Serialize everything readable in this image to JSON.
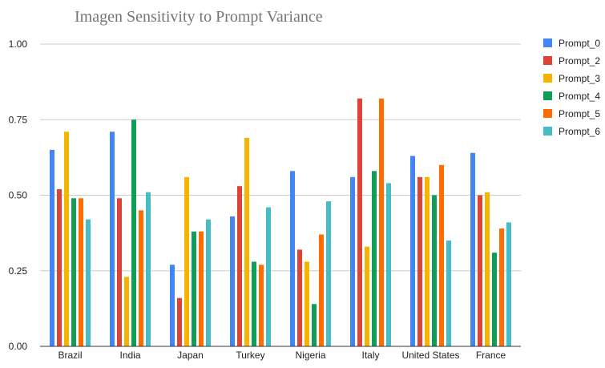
{
  "chart_data": {
    "type": "bar",
    "title": "Imagen Sensitivity to Prompt Variance",
    "xlabel": "",
    "ylabel": "",
    "ylim": [
      0,
      1
    ],
    "yticks": [
      "0.00",
      "0.25",
      "0.50",
      "0.75",
      "1.00"
    ],
    "grid": true,
    "legend_position": "right",
    "categories": [
      "Brazil",
      "India",
      "Japan",
      "Turkey",
      "Nigeria",
      "Italy",
      "United States",
      "France"
    ],
    "series": [
      {
        "name": "Prompt_0",
        "color": "#4285f4",
        "values": [
          0.65,
          0.71,
          0.27,
          0.43,
          0.58,
          0.56,
          0.63,
          0.64
        ]
      },
      {
        "name": "Prompt_2",
        "color": "#db4437",
        "values": [
          0.52,
          0.49,
          0.16,
          0.53,
          0.32,
          0.82,
          0.56,
          0.5
        ]
      },
      {
        "name": "Prompt_3",
        "color": "#f4b400",
        "values": [
          0.71,
          0.23,
          0.56,
          0.69,
          0.28,
          0.33,
          0.56,
          0.51
        ]
      },
      {
        "name": "Prompt_4",
        "color": "#0f9d58",
        "values": [
          0.49,
          0.75,
          0.38,
          0.28,
          0.14,
          0.58,
          0.5,
          0.31
        ]
      },
      {
        "name": "Prompt_5",
        "color": "#ff6d01",
        "values": [
          0.49,
          0.45,
          0.38,
          0.27,
          0.37,
          0.82,
          0.6,
          0.39
        ]
      },
      {
        "name": "Prompt_6",
        "color": "#46bdc6",
        "values": [
          0.42,
          0.51,
          0.42,
          0.46,
          0.48,
          0.54,
          0.35,
          0.41
        ]
      }
    ]
  }
}
